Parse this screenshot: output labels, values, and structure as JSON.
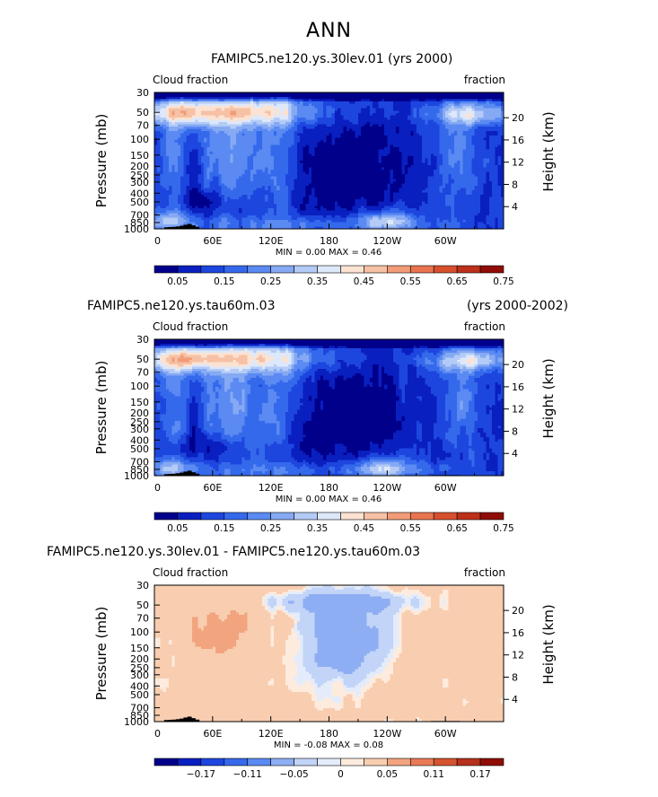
{
  "figure": {
    "title": "ANN"
  },
  "colors": {
    "continent": "#000000",
    "frame": "#000000"
  },
  "chart_data": [
    {
      "type": "heatmap",
      "title_left": "FAMIPC5.ne120.ys.30lev.01 (yrs 2000)",
      "title_right": "",
      "subtitle_left": "Cloud fraction",
      "subtitle_right": "fraction",
      "ylabel": "Pressure (mb)",
      "ylabel_right": "Height (km)",
      "y_ticks": [
        "30",
        "50",
        "70",
        "100",
        "150",
        "200",
        "250",
        "300",
        "400",
        "500",
        "700",
        "850",
        "1000"
      ],
      "y_tick_values": [
        30,
        50,
        70,
        100,
        150,
        200,
        250,
        300,
        400,
        500,
        700,
        850,
        1000
      ],
      "y_right_ticks": [
        "4",
        "8",
        "12",
        "16",
        "20"
      ],
      "y_right_values": [
        4,
        8,
        12,
        16,
        20
      ],
      "x_ticks": [
        "0",
        "60E",
        "120E",
        "180",
        "120W",
        "60W"
      ],
      "x_tick_values": [
        0,
        60,
        120,
        180,
        240,
        300
      ],
      "xlim": [
        0,
        360
      ],
      "ylim": [
        1000,
        30
      ],
      "stats": "MIN =    0.00   MAX =    0.46",
      "colorbar": {
        "labels": [
          "0.05",
          "0.15",
          "0.25",
          "0.35",
          "0.45",
          "0.55",
          "0.65",
          "0.75"
        ],
        "colors": [
          "#00008b",
          "#0a1fc0",
          "#1d46de",
          "#3569ec",
          "#5a8af2",
          "#86a9f3",
          "#b3cbf6",
          "#dde8fb",
          "#fbe2d2",
          "#f6c1a5",
          "#f29c77",
          "#ea7450",
          "#d8502e",
          "#bd301a",
          "#8f0d06"
        ]
      },
      "palette": "positive"
    },
    {
      "type": "heatmap",
      "title_left": "FAMIPC5.ne120.ys.tau60m.03",
      "title_right": "(yrs 2000-2002)",
      "subtitle_left": "Cloud fraction",
      "subtitle_right": "fraction",
      "ylabel": "Pressure (mb)",
      "ylabel_right": "Height (km)",
      "y_ticks": [
        "30",
        "50",
        "70",
        "100",
        "150",
        "200",
        "250",
        "300",
        "400",
        "500",
        "700",
        "850",
        "1000"
      ],
      "y_tick_values": [
        30,
        50,
        70,
        100,
        150,
        200,
        250,
        300,
        400,
        500,
        700,
        850,
        1000
      ],
      "y_right_ticks": [
        "4",
        "8",
        "12",
        "16",
        "20"
      ],
      "y_right_values": [
        4,
        8,
        12,
        16,
        20
      ],
      "x_ticks": [
        "0",
        "60E",
        "120E",
        "180",
        "120W",
        "60W"
      ],
      "x_tick_values": [
        0,
        60,
        120,
        180,
        240,
        300
      ],
      "xlim": [
        0,
        360
      ],
      "ylim": [
        1000,
        30
      ],
      "stats": "MIN =    0.00   MAX =    0.46",
      "colorbar": {
        "labels": [
          "0.05",
          "0.15",
          "0.25",
          "0.35",
          "0.45",
          "0.55",
          "0.65",
          "0.75"
        ],
        "colors": [
          "#00008b",
          "#0a1fc0",
          "#1d46de",
          "#3569ec",
          "#5a8af2",
          "#86a9f3",
          "#b3cbf6",
          "#dde8fb",
          "#fbe2d2",
          "#f6c1a5",
          "#f29c77",
          "#ea7450",
          "#d8502e",
          "#bd301a",
          "#8f0d06"
        ]
      },
      "palette": "positive"
    },
    {
      "type": "heatmap",
      "title_left": "FAMIPC5.ne120.ys.30lev.01 - FAMIPC5.ne120.ys.tau60m.03",
      "title_right": "",
      "subtitle_left": "Cloud fraction",
      "subtitle_right": "fraction",
      "ylabel": "Pressure (mb)",
      "ylabel_right": "Height (km)",
      "y_ticks": [
        "30",
        "50",
        "70",
        "100",
        "150",
        "200",
        "250",
        "300",
        "400",
        "500",
        "700",
        "850",
        "1000"
      ],
      "y_tick_values": [
        30,
        50,
        70,
        100,
        150,
        200,
        250,
        300,
        400,
        500,
        700,
        850,
        1000
      ],
      "y_right_ticks": [
        "4",
        "8",
        "12",
        "16",
        "20"
      ],
      "y_right_values": [
        4,
        8,
        12,
        16,
        20
      ],
      "x_ticks": [
        "0",
        "60E",
        "120E",
        "180",
        "120W",
        "60W"
      ],
      "x_tick_values": [
        0,
        60,
        120,
        180,
        240,
        300
      ],
      "xlim": [
        0,
        360
      ],
      "ylim": [
        1000,
        30
      ],
      "stats": "MIN =  -0.08   MAX =    0.08",
      "colorbar": {
        "labels": [
          "−0.17",
          "−0.11",
          "−0.05",
          "0",
          "0.05",
          "0.11",
          "0.17"
        ],
        "colors": [
          "#00008b",
          "#0a1fc0",
          "#1d46de",
          "#3569ec",
          "#5a8af2",
          "#8eaef3",
          "#c2d4f7",
          "#e4ecfb",
          "#fdebde",
          "#f8cdb0",
          "#f2a47e",
          "#e97a56",
          "#d6532f",
          "#b6301b",
          "#8f0d06"
        ]
      },
      "palette": "difference"
    }
  ]
}
